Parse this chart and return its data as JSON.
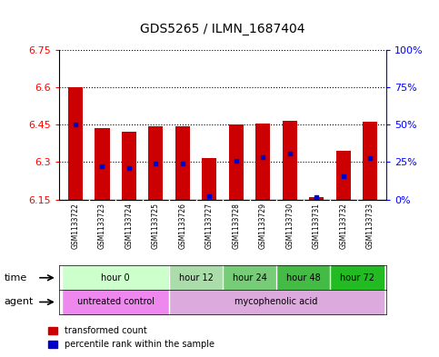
{
  "title": "GDS5265 / ILMN_1687404",
  "samples": [
    "GSM1133722",
    "GSM1133723",
    "GSM1133724",
    "GSM1133725",
    "GSM1133726",
    "GSM1133727",
    "GSM1133728",
    "GSM1133729",
    "GSM1133730",
    "GSM1133731",
    "GSM1133732",
    "GSM1133733"
  ],
  "bar_bottom": 6.15,
  "bar_tops": [
    6.6,
    6.435,
    6.42,
    6.445,
    6.445,
    6.315,
    6.45,
    6.455,
    6.465,
    6.16,
    6.345,
    6.46
  ],
  "blue_dots": [
    6.45,
    6.285,
    6.275,
    6.295,
    6.295,
    6.165,
    6.305,
    6.32,
    6.335,
    6.16,
    6.245,
    6.315
  ],
  "ylim_left": [
    6.15,
    6.75
  ],
  "yticks_left": [
    6.15,
    6.3,
    6.45,
    6.6,
    6.75
  ],
  "ylim_right": [
    0,
    100
  ],
  "yticks_right": [
    0,
    25,
    50,
    75,
    100
  ],
  "ytick_labels_right": [
    "0%",
    "25%",
    "50%",
    "75%",
    "100%"
  ],
  "bar_color": "#cc0000",
  "dot_color": "#0000cc",
  "plot_bg": "#ffffff",
  "label_bg": "#d0d0d0",
  "time_groups": [
    {
      "label": "hour 0",
      "start": 0,
      "end": 3,
      "color": "#ccffcc"
    },
    {
      "label": "hour 12",
      "start": 4,
      "end": 5,
      "color": "#aaddaa"
    },
    {
      "label": "hour 24",
      "start": 6,
      "end": 7,
      "color": "#77cc77"
    },
    {
      "label": "hour 48",
      "start": 8,
      "end": 9,
      "color": "#44bb44"
    },
    {
      "label": "hour 72",
      "start": 10,
      "end": 11,
      "color": "#22bb22"
    }
  ],
  "agent_groups": [
    {
      "label": "untreated control",
      "start": 0,
      "end": 3,
      "color": "#ee88ee"
    },
    {
      "label": "mycophenolic acid",
      "start": 4,
      "end": 11,
      "color": "#ddaadd"
    }
  ]
}
